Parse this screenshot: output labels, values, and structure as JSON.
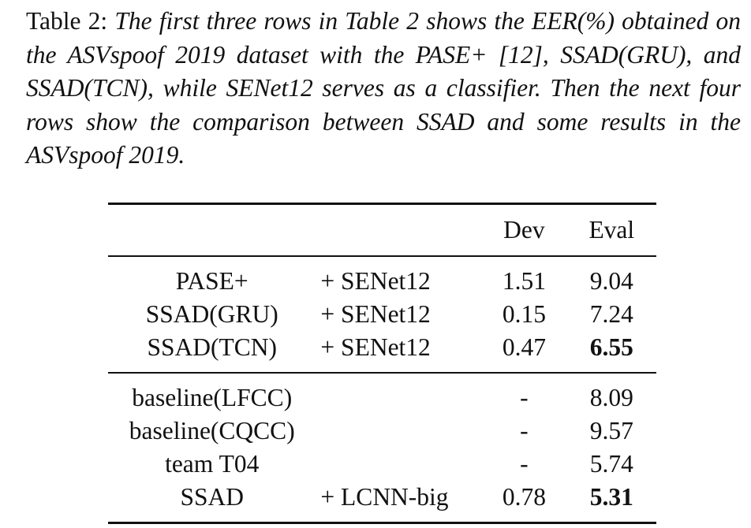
{
  "caption": {
    "label": "Table 2: ",
    "text": "The first three rows in Table 2 shows the EER(%) obtained on the ASVspoof 2019 dataset with the PASE+ [12], SSAD(GRU), and SSAD(TCN), while SENet12 serves as a classifier. Then the next four rows show the comparison between SSAD and some results in the ASVspoof 2019."
  },
  "table": {
    "headers": {
      "model": "",
      "classifier": "",
      "dev": "Dev",
      "eval": "Eval"
    },
    "group1": [
      {
        "model": "PASE+",
        "classifier": "+ SENet12",
        "dev": "1.51",
        "eval": "9.04",
        "eval_bold": false
      },
      {
        "model": "SSAD(GRU)",
        "classifier": "+ SENet12",
        "dev": "0.15",
        "eval": "7.24",
        "eval_bold": false
      },
      {
        "model": "SSAD(TCN)",
        "classifier": "+ SENet12",
        "dev": "0.47",
        "eval": "6.55",
        "eval_bold": true
      }
    ],
    "group2": [
      {
        "model": "baseline(LFCC)",
        "classifier": "",
        "dev": "-",
        "eval": "8.09",
        "eval_bold": false
      },
      {
        "model": "baseline(CQCC)",
        "classifier": "",
        "dev": "-",
        "eval": "9.57",
        "eval_bold": false
      },
      {
        "model": "team T04",
        "classifier": "",
        "dev": "-",
        "eval": "5.74",
        "eval_bold": false
      },
      {
        "model": "SSAD",
        "classifier": "+ LCNN-big",
        "dev": "0.78",
        "eval": "5.31",
        "eval_bold": true
      }
    ]
  }
}
